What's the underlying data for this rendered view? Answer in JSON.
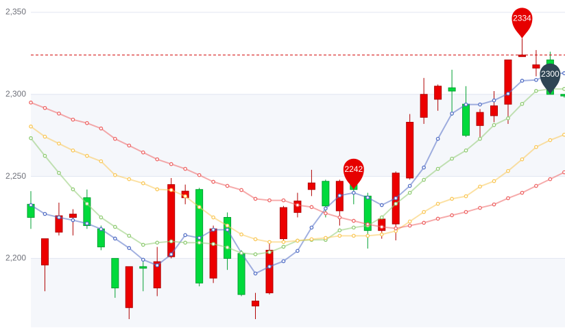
{
  "chart_data": {
    "type": "candlestick",
    "open": [
      2233,
      2196,
      2216,
      2225,
      2237,
      2218,
      2200,
      2170,
      2195,
      2182,
      2201,
      2237,
      2242,
      2188,
      2225,
      2203,
      2171,
      2179,
      2212,
      2228,
      2242,
      2247,
      2229,
      2247,
      2238,
      2217,
      2221,
      2249,
      2286,
      2297,
      2304,
      2294,
      2281,
      2287,
      2294,
      2323,
      2316,
      2321,
      2300
    ],
    "close": [
      2225,
      2212,
      2226,
      2227,
      2220,
      2207,
      2182,
      2195,
      2194,
      2198,
      2245,
      2241,
      2185,
      2218,
      2200,
      2178,
      2174,
      2205,
      2231,
      2235,
      2246,
      2232,
      2247,
      2242,
      2217,
      2224,
      2252,
      2283,
      2300,
      2305,
      2302,
      2275,
      2289,
      2293,
      2321,
      2324,
      2318,
      2300,
      2299
    ],
    "high": [
      2241,
      2212,
      2234,
      2230,
      2242,
      2220,
      2200,
      2195,
      2198,
      2207,
      2249,
      2245,
      2243,
      2220,
      2228,
      2205,
      2179,
      2211,
      2232,
      2240,
      2254,
      2248,
      2248,
      2249,
      2240,
      2226,
      2253,
      2288,
      2310,
      2306,
      2315,
      2305,
      2291,
      2302,
      2321,
      2334,
      2327,
      2326,
      2300
    ],
    "low": [
      2218,
      2180,
      2214,
      2214,
      2218,
      2205,
      2176,
      2163,
      2180,
      2177,
      2200,
      2233,
      2183,
      2185,
      2193,
      2177,
      2163,
      2178,
      2210,
      2225,
      2238,
      2225,
      2220,
      2233,
      2206,
      2212,
      2211,
      2248,
      2282,
      2290,
      2287,
      2274,
      2272,
      2283,
      2282,
      2323,
      2311,
      2300,
      2298
    ],
    "up_color": "#ec0000",
    "down_color": "#00da3c",
    "series": [
      {
        "color": "#5470c6",
        "values": [
          2232.5,
          2227.1,
          2225,
          2223.3,
          2221.3,
          2217.9,
          2212.1,
          2206.3,
          2199.2,
          2195.8,
          2202.5,
          2214.2,
          2212.5,
          2217.5,
          2217.5,
          2203.3,
          2190.8,
          2195,
          2198.3,
          2204.6,
          2218.8,
          2230.4,
          2238.3,
          2240,
          2237.1,
          2232.5,
          2236.7,
          2244.2,
          2255.4,
          2272.9,
          2288.3,
          2293.8,
          2293.8,
          2296.3,
          2300.4,
          2308.3,
          2308.8,
          2312.5,
          2312.9
        ]
      },
      {
        "color": "#91cc75",
        "values": [
          2273.3,
          2262.5,
          2252.1,
          2242.1,
          2233.3,
          2225,
          2219.2,
          2213.8,
          2208.3,
          2209.6,
          2210.4,
          2209.6,
          2209.6,
          2208.8,
          2206.7,
          2203.3,
          2202.5,
          2203.8,
          2207.1,
          2210.8,
          2211.3,
          2211.3,
          2217.1,
          2218.8,
          2220,
          2225,
          2233.3,
          2240,
          2247.9,
          2254.6,
          2260.8,
          2265.8,
          2272.9,
          2281.3,
          2285.4,
          2294.2,
          2302.1,
          2303.3,
          2303.3
        ]
      },
      {
        "color": "#fac858",
        "values": [
          2280.4,
          2274.2,
          2270,
          2265.8,
          2262.5,
          2259.2,
          2250.8,
          2248.3,
          2245.8,
          2242.1,
          2241.7,
          2237.9,
          2231.3,
          2225,
          2220,
          2214.6,
          2211.7,
          2210,
          2210,
          2210.8,
          2211.7,
          2212.5,
          2213.8,
          2213.8,
          2213.8,
          2214.6,
          2216.7,
          2222.5,
          2228.3,
          2233.3,
          2236.3,
          2237.9,
          2243.8,
          2247.1,
          2253.3,
          2260.4,
          2267.9,
          2272.1,
          2275.4
        ]
      },
      {
        "color": "#ee6666",
        "values": [
          2295,
          2291.7,
          2288.3,
          2284.6,
          2282.5,
          2279.2,
          2272.9,
          2268.8,
          2264.6,
          2260.4,
          2257.5,
          2254.6,
          2250.8,
          2246.7,
          2244.2,
          2241.7,
          2236.3,
          2235.4,
          2235.4,
          2232.5,
          2231.3,
          2227.5,
          2225,
          2222.9,
          2220.8,
          2219.2,
          2218.3,
          2220,
          2221.7,
          2224.2,
          2226.3,
          2228.3,
          2230.8,
          2232.9,
          2236.7,
          2240,
          2244.2,
          2248.3,
          2252.5
        ]
      }
    ],
    "mark_points": [
      {
        "index": 23,
        "value": 2242,
        "color": "#e60000"
      },
      {
        "index": 35,
        "value": 2334,
        "color": "#e60000"
      },
      {
        "index": 37,
        "value": 2300,
        "color": "#2f4554"
      }
    ],
    "mark_line": {
      "value": 2324,
      "color": "#d00000"
    },
    "ylim": [
      2158,
      2350
    ],
    "yticks": [
      {
        "value": 2200,
        "label": "2,200"
      },
      {
        "value": 2250,
        "label": "2,250"
      },
      {
        "value": 2300,
        "label": "2,300"
      },
      {
        "value": 2350,
        "label": "2,350"
      }
    ],
    "grid": true
  }
}
